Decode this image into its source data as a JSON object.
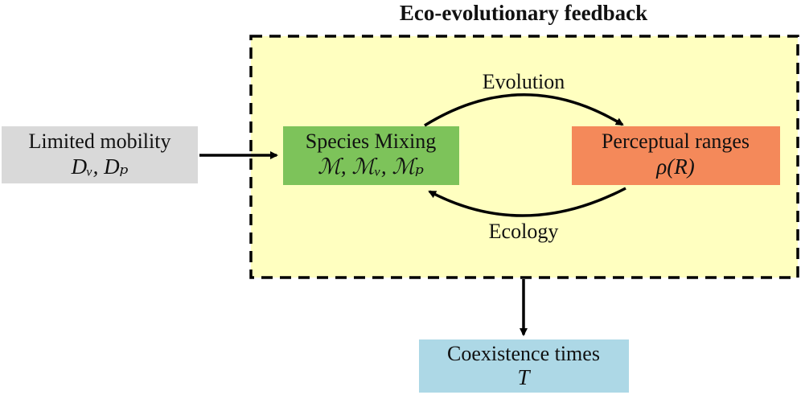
{
  "title": "Eco-evolutionary feedback",
  "nodes": [
    {
      "label": "Limited mobility",
      "math": "Dᵥ, Dₚ"
    },
    {
      "label": "Species Mixing",
      "math": "ℳ, ℳᵥ, ℳₚ"
    },
    {
      "label": "Perceptual ranges",
      "math": "ρ(R)"
    },
    {
      "label": "Coexistence times",
      "math": "T"
    }
  ],
  "edges": [
    {
      "label": "Evolution"
    },
    {
      "label": "Ecology"
    }
  ]
}
